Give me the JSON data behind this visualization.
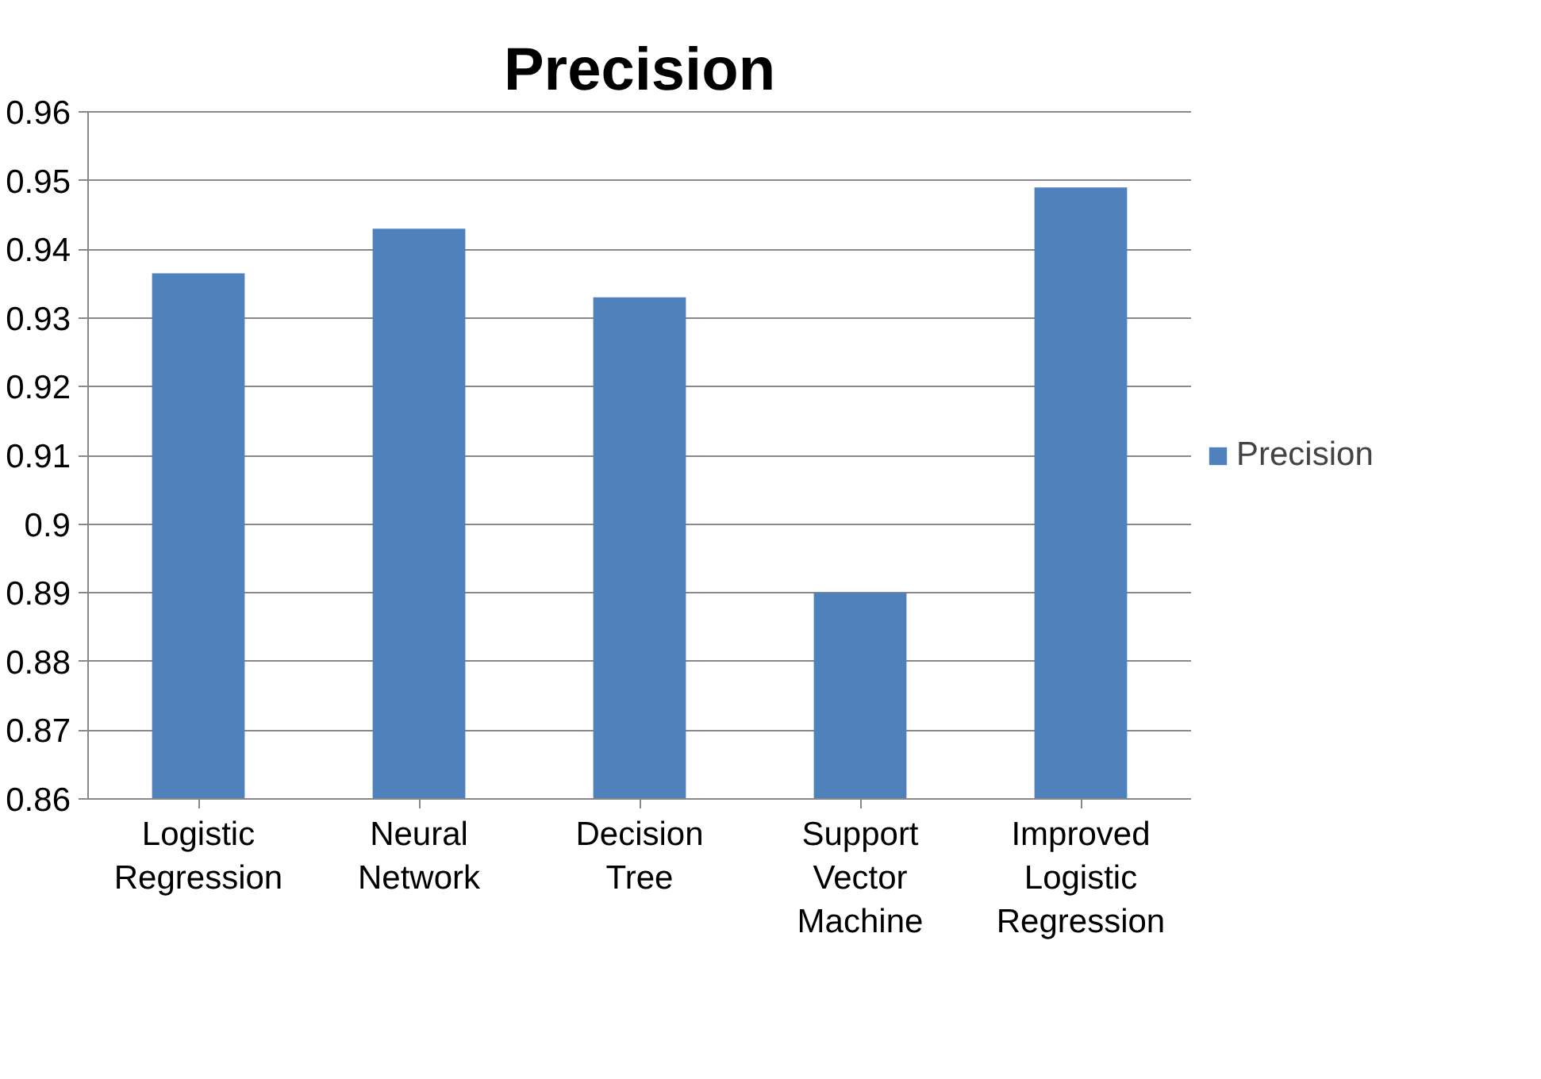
{
  "chart_data": {
    "type": "bar",
    "title": "Precision",
    "categories": [
      "Logistic Regression",
      "Neural Network",
      "Decision Tree",
      "Support Vector Machine",
      "Improved Logistic Regression"
    ],
    "series": [
      {
        "name": "Precision",
        "color": "#4f81bd",
        "values": [
          0.9365,
          0.943,
          0.933,
          0.89,
          0.949
        ]
      }
    ],
    "ylim": [
      0.86,
      0.96
    ],
    "yticks": [
      0.86,
      0.87,
      0.88,
      0.89,
      0.9,
      0.91,
      0.92,
      0.93,
      0.94,
      0.95,
      0.96
    ],
    "grid": "y",
    "legend": "right"
  }
}
